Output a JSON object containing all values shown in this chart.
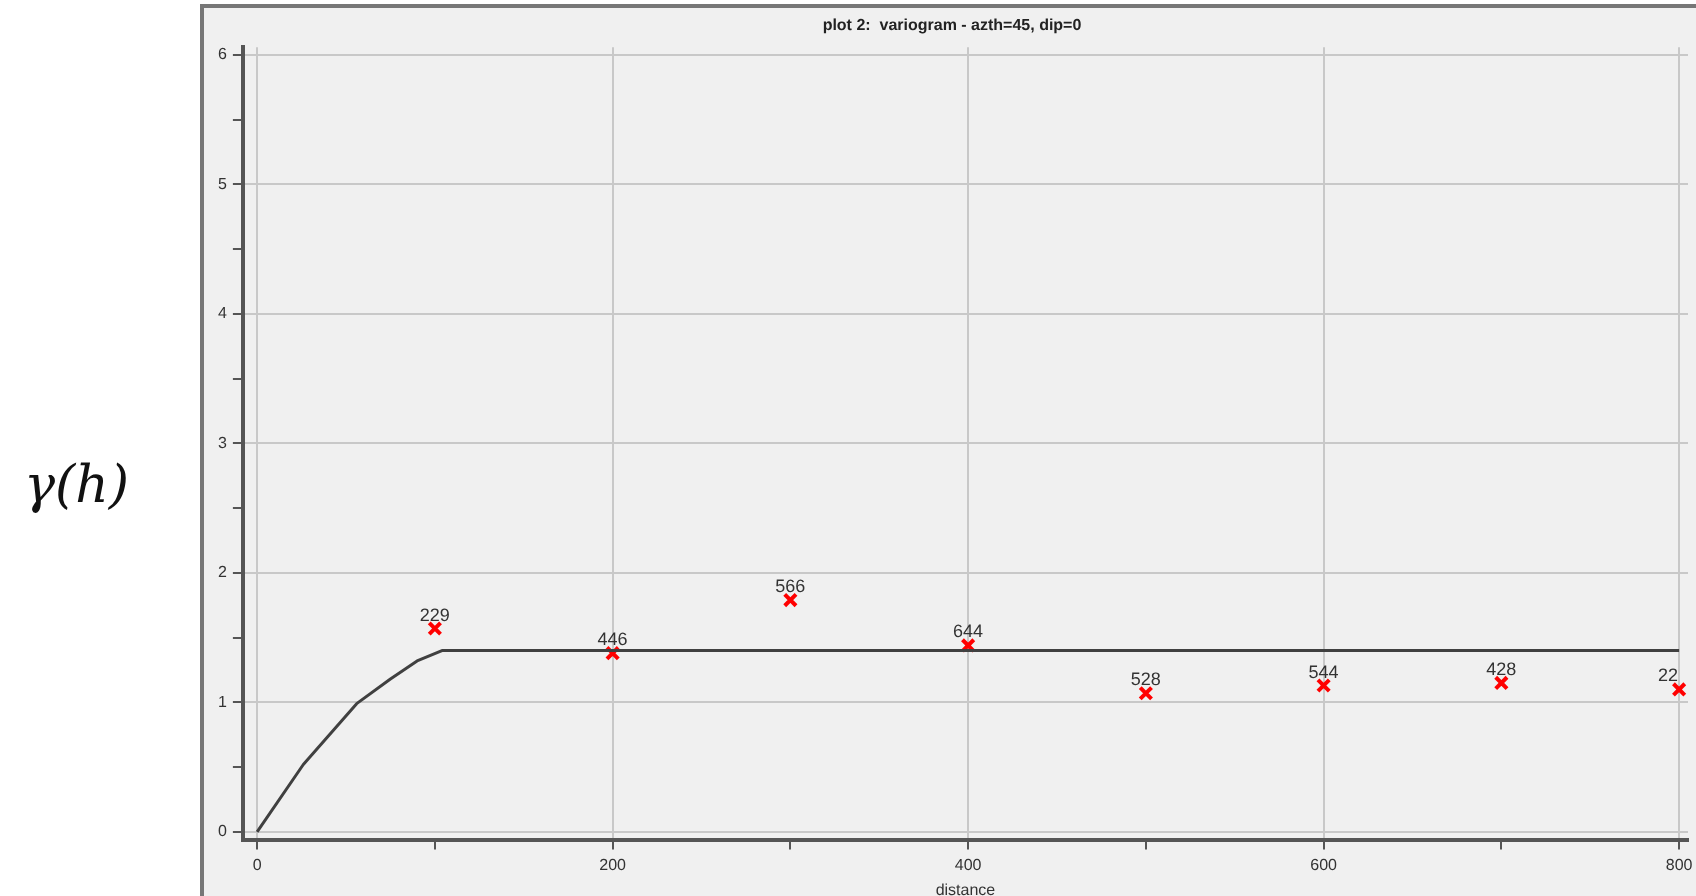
{
  "chart_data": {
    "type": "scatter",
    "title": "plot 2:  variogram - azth=45, dip=0",
    "xlabel": "distance",
    "ylabel": "γ(h)",
    "xlim": [
      -8,
      805
    ],
    "ylim": [
      -0.06,
      6.06
    ],
    "xticks": [
      0,
      {
        "value": 100,
        "label": null
      },
      200,
      {
        "value": 300,
        "label": null
      },
      400,
      {
        "value": 500,
        "label": null
      },
      600,
      {
        "value": 700,
        "label": null
      },
      800
    ],
    "yticks": [
      0,
      {
        "value": 0.5,
        "label": null
      },
      1,
      {
        "value": 1.5,
        "label": null
      },
      2,
      {
        "value": 2.5,
        "label": null
      },
      3,
      {
        "value": 3.5,
        "label": null
      },
      4,
      {
        "value": 4.5,
        "label": null
      },
      5,
      {
        "value": 5.5,
        "label": null
      },
      6
    ],
    "grid": true,
    "legend": false,
    "series": [
      {
        "type": "line",
        "color": "#404040",
        "marker": "none",
        "line_style": "solid",
        "x": [
          0,
          26,
          56,
          75,
          90,
          104,
          800
        ],
        "values": [
          0,
          0.52,
          0.99,
          1.18,
          1.32,
          1.4,
          1.4
        ]
      },
      {
        "color": "#ff0000",
        "marker": "cross",
        "x": [
          100,
          200,
          300,
          400,
          500,
          600,
          700,
          800
        ],
        "values": [
          1.57,
          1.38,
          1.79,
          1.44,
          1.07,
          1.13,
          1.15,
          1.1
        ]
      }
    ],
    "annotations": [
      {
        "text": "229",
        "x": 100,
        "y": 1.57
      },
      {
        "text": "446",
        "x": 200,
        "y": 1.38
      },
      {
        "text": "566",
        "x": 300,
        "y": 1.79
      },
      {
        "text": "644",
        "x": 400,
        "y": 1.44
      },
      {
        "text": "528",
        "x": 500,
        "y": 1.07
      },
      {
        "text": "544",
        "x": 600,
        "y": 1.13
      },
      {
        "text": "428",
        "x": 700,
        "y": 1.15
      },
      {
        "text": "22",
        "x": 800,
        "y": 1.1
      }
    ]
  }
}
